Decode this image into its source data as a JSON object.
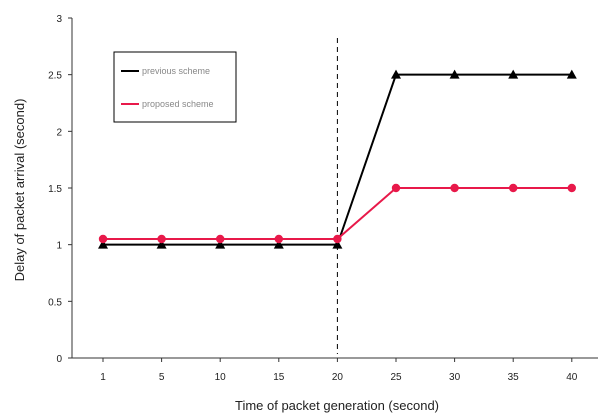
{
  "chart_data": {
    "type": "line",
    "title": "",
    "xlabel": "Time of packet generation (second)",
    "ylabel": "Delay of packet arrival (second)",
    "categories": [
      "1",
      "5",
      "10",
      "15",
      "20",
      "25",
      "30",
      "35",
      "40"
    ],
    "ylim": [
      0,
      3
    ],
    "yticks": [
      "0",
      "0.5",
      "1",
      "1.5",
      "2",
      "2.5",
      "3"
    ],
    "ytick_values": [
      0,
      0.5,
      1,
      1.5,
      2,
      2.5,
      3
    ],
    "grid": false,
    "legend_position": "top-left",
    "vertical_marker": {
      "category": "20",
      "style": "dashed"
    },
    "series": [
      {
        "name": "previous scheme",
        "color": "#000000",
        "marker": "triangle",
        "values": [
          1,
          1,
          1,
          1,
          1,
          2.5,
          2.5,
          2.5,
          2.5
        ]
      },
      {
        "name": "proposed scheme",
        "color": "#e8194a",
        "marker": "circle",
        "values": [
          1.05,
          1.05,
          1.05,
          1.05,
          1.05,
          1.5,
          1.5,
          1.5,
          1.5
        ]
      }
    ]
  }
}
